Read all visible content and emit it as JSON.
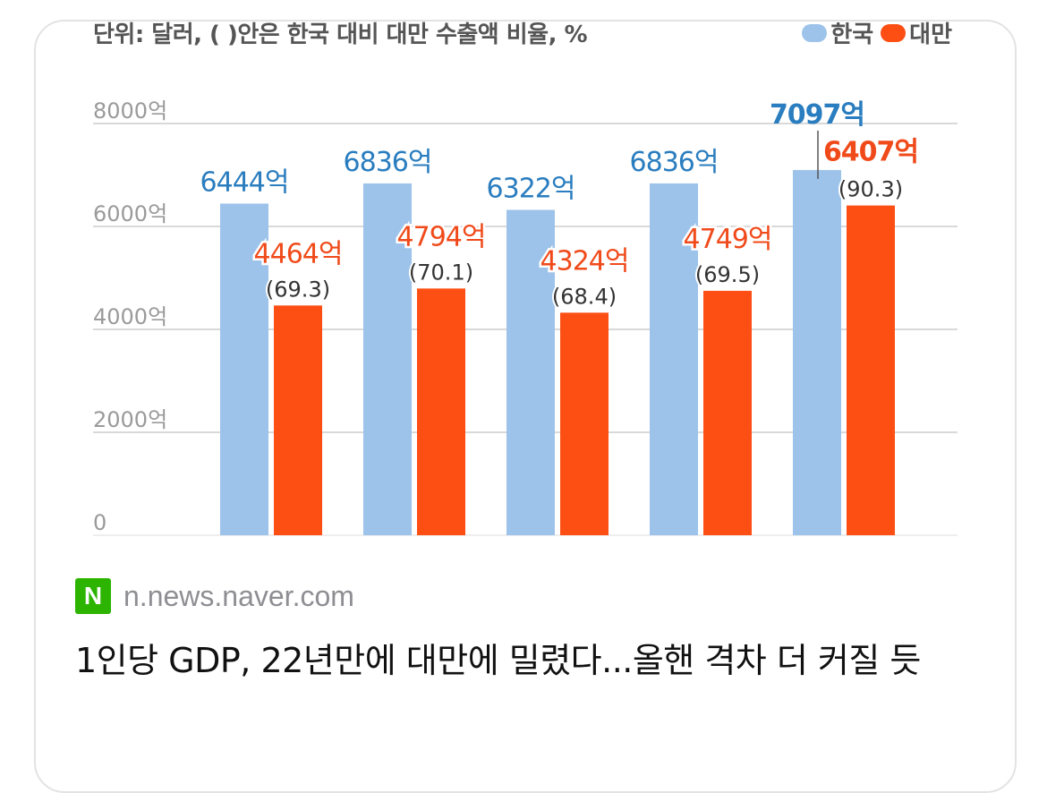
{
  "card": {
    "chart_caption": "단위: 달러, ( )안은 한국 대비 대만 수출액 비율, %",
    "legend": [
      {
        "label": "한국",
        "color": "#9dc3ea"
      },
      {
        "label": "대만",
        "color": "#fd4e14"
      }
    ],
    "source_logo": "N",
    "source_domain": "n.news.naver.com",
    "headline": "1인당 GDP, 22년만에 대만에 밀렸다...올핸 격차 더 커질 듯"
  },
  "chart_data": {
    "type": "bar",
    "categories": [
      "",
      "",
      "",
      "",
      ""
    ],
    "y_ticks": [
      "0",
      "2000억",
      "4000억",
      "6000억",
      "8000억"
    ],
    "ylim": [
      0,
      8000
    ],
    "grid": true,
    "legend_position": "top-right",
    "series": [
      {
        "name": "한국",
        "color": "#9dc3ea",
        "label_color": "#2a7dbf",
        "values": [
          6444,
          6836,
          6322,
          6836,
          7097
        ],
        "labels": [
          "6444억",
          "6836억",
          "6322억",
          "6836억",
          "7097억"
        ]
      },
      {
        "name": "대만",
        "color": "#fd4e14",
        "label_color": "#f04a1a",
        "values": [
          4464,
          4794,
          4324,
          4749,
          6407
        ],
        "labels": [
          "4464억",
          "4794억",
          "4324억",
          "4749억",
          "6407억"
        ],
        "ratios": [
          "(69.3)",
          "(70.1)",
          "(68.4)",
          "(69.5)",
          "(90.3)"
        ]
      }
    ]
  }
}
